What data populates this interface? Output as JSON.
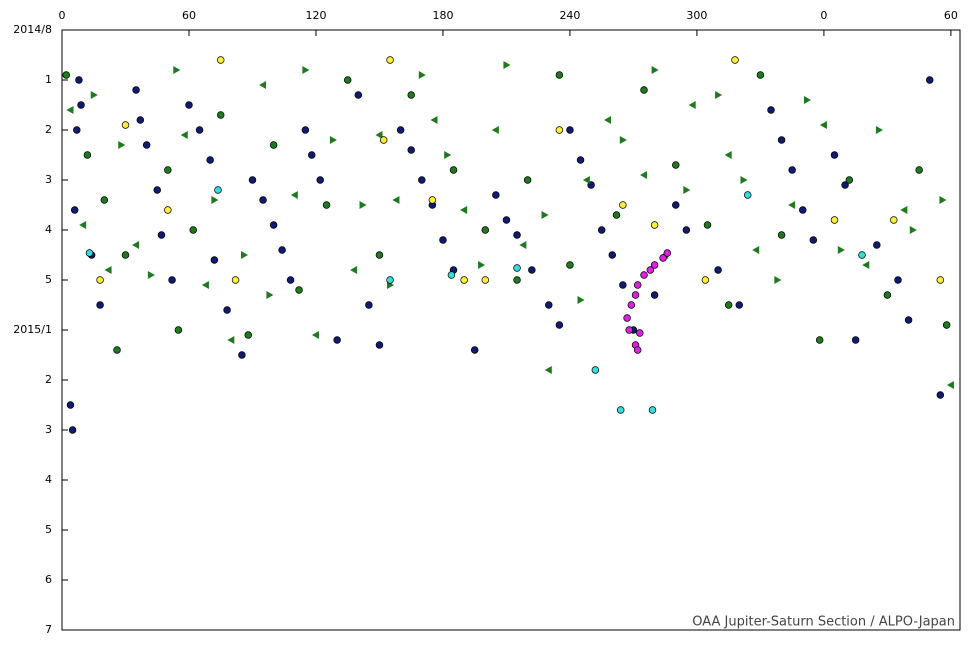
{
  "chart_data": {
    "type": "scatter",
    "xlim": [
      0,
      424.3
    ],
    "xticks": [
      0,
      60,
      120,
      180,
      240,
      300,
      {
        "value": 360,
        "label": "0"
      },
      {
        "value": 420,
        "label": "60"
      }
    ],
    "ylim": [
      0,
      12
    ],
    "yticks": [
      {
        "value": 0,
        "label": "2014/8"
      },
      1,
      2,
      3,
      4,
      5,
      {
        "value": 6,
        "label": "2015/1"
      },
      {
        "value": 7,
        "label": "2"
      },
      {
        "value": 8,
        "label": "3"
      },
      {
        "value": 9,
        "label": "4"
      },
      {
        "value": 10,
        "label": "5"
      },
      {
        "value": 11,
        "label": "6"
      },
      {
        "value": 12,
        "label": "7"
      }
    ],
    "y_inverted": true,
    "credit": "OAA Jupiter-Saturn Section / ALPO-Japan",
    "series": [
      {
        "color": "#101a70",
        "marker": "circle",
        "x": [
          8,
          9,
          7,
          6,
          4,
          5,
          18,
          14,
          35,
          37,
          40,
          45,
          47,
          52,
          60,
          65,
          70,
          72,
          78,
          85,
          90,
          95,
          100,
          104,
          108,
          115,
          118,
          122,
          130,
          140,
          145,
          150,
          160,
          165,
          170,
          175,
          180,
          185,
          195,
          205,
          210,
          215,
          222,
          230,
          235,
          240,
          245,
          250,
          255,
          260,
          265,
          270,
          280,
          290,
          295,
          310,
          320,
          335,
          340,
          345,
          350,
          355,
          365,
          370,
          375,
          385,
          395,
          400,
          410,
          415
        ],
        "values": [
          1.0,
          1.5,
          2.0,
          3.6,
          7.5,
          8.0,
          5.5,
          4.5,
          1.2,
          1.8,
          2.3,
          3.2,
          4.1,
          5.0,
          1.5,
          2.0,
          2.6,
          4.6,
          5.6,
          6.5,
          3.0,
          3.4,
          3.9,
          4.4,
          5.0,
          2.0,
          2.5,
          3.0,
          6.2,
          1.3,
          5.5,
          6.3,
          2.0,
          2.4,
          3.0,
          3.5,
          4.2,
          4.8,
          6.4,
          3.3,
          3.8,
          4.1,
          4.8,
          5.5,
          5.9,
          2.0,
          2.6,
          3.1,
          4.0,
          4.5,
          5.1,
          6.0,
          5.3,
          3.5,
          4.0,
          4.8,
          5.5,
          1.6,
          2.2,
          2.8,
          3.6,
          4.2,
          2.5,
          3.1,
          6.2,
          4.3,
          5.0,
          5.8,
          1.0,
          7.3
        ]
      },
      {
        "color": "#1e7a1e",
        "marker": "circle",
        "x": [
          2,
          12,
          20,
          26,
          30,
          50,
          55,
          62,
          75,
          88,
          100,
          112,
          125,
          135,
          150,
          165,
          185,
          200,
          215,
          220,
          235,
          240,
          262,
          275,
          290,
          305,
          315,
          330,
          340,
          358,
          372,
          390,
          405,
          418
        ],
        "values": [
          0.9,
          2.5,
          3.4,
          6.4,
          4.5,
          2.8,
          6.0,
          4.0,
          1.7,
          6.1,
          2.3,
          5.2,
          3.5,
          1.0,
          4.5,
          1.3,
          2.8,
          4.0,
          5.0,
          3.0,
          0.9,
          4.7,
          3.7,
          1.2,
          2.7,
          3.9,
          5.5,
          0.9,
          4.1,
          6.2,
          3.0,
          5.3,
          2.8,
          5.9
        ]
      },
      {
        "color": "#1e7a1e",
        "marker": "triangle-left",
        "x": [
          4,
          10,
          22,
          35,
          58,
          68,
          80,
          95,
          110,
          120,
          138,
          150,
          158,
          176,
          190,
          205,
          218,
          230,
          248,
          258,
          275,
          285,
          298,
          315,
          328,
          345,
          360,
          380,
          398,
          420
        ],
        "values": [
          1.6,
          3.9,
          4.8,
          4.3,
          2.1,
          5.1,
          6.2,
          1.1,
          3.3,
          6.1,
          4.8,
          2.1,
          3.4,
          1.8,
          3.6,
          2.0,
          4.3,
          6.8,
          3.0,
          1.8,
          2.9,
          4.5,
          1.5,
          2.5,
          4.4,
          3.5,
          1.9,
          4.7,
          3.6,
          7.1
        ]
      },
      {
        "color": "#1e7a1e",
        "marker": "triangle-right",
        "x": [
          15,
          28,
          42,
          54,
          72,
          86,
          98,
          115,
          128,
          142,
          155,
          170,
          182,
          198,
          210,
          228,
          245,
          265,
          280,
          295,
          310,
          322,
          338,
          352,
          368,
          386,
          402,
          416
        ],
        "values": [
          1.3,
          2.3,
          4.9,
          0.8,
          3.4,
          4.5,
          5.3,
          0.8,
          2.2,
          3.5,
          5.1,
          0.9,
          2.5,
          4.7,
          0.7,
          3.7,
          5.4,
          2.2,
          0.8,
          3.2,
          1.3,
          3.0,
          5.0,
          1.4,
          4.4,
          2.0,
          4.0,
          3.4
        ]
      },
      {
        "color": "#ffee33",
        "marker": "circle",
        "x": [
          18,
          30,
          50,
          75,
          82,
          152,
          155,
          175,
          190,
          200,
          235,
          265,
          280,
          304,
          318,
          365,
          393,
          415
        ],
        "values": [
          5.0,
          1.9,
          3.6,
          0.6,
          5.0,
          2.2,
          0.6,
          3.4,
          5.0,
          5.0,
          2.0,
          3.5,
          3.9,
          5.0,
          0.6,
          3.8,
          3.8,
          5.0
        ]
      },
      {
        "color": "#33dddd",
        "marker": "circle",
        "x": [
          73.7,
          13,
          155,
          184,
          215,
          252,
          279,
          264,
          324,
          378
        ],
        "values": [
          3.2,
          4.46,
          5.0,
          4.9,
          4.76,
          6.8,
          7.6,
          7.6,
          3.3,
          4.5
        ]
      },
      {
        "color": "#e020e0",
        "marker": "circle",
        "x": [
          286,
          284,
          280,
          278,
          275,
          272,
          271,
          269,
          267,
          268,
          273,
          271,
          272
        ],
        "values": [
          4.46,
          4.56,
          4.7,
          4.8,
          4.9,
          5.1,
          5.3,
          5.5,
          5.76,
          6.0,
          6.06,
          6.3,
          6.4
        ]
      }
    ]
  }
}
